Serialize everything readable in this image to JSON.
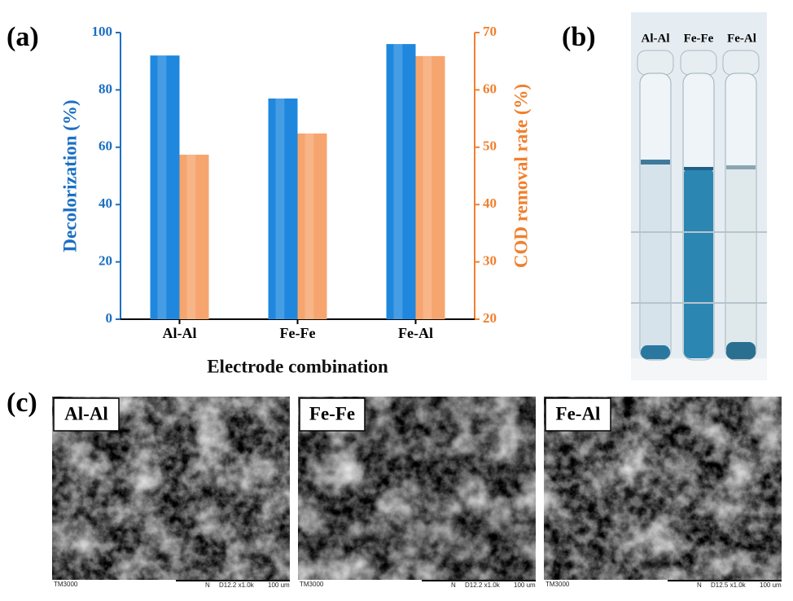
{
  "chart_data": {
    "type": "bar",
    "panel_label": "(a)",
    "xlabel": "Electrode combination",
    "ylabel": "Decolorization (%)",
    "y2label": "COD removal rate (%)",
    "categories": [
      "Al-Al",
      "Fe-Fe",
      "Fe-Al"
    ],
    "series": [
      {
        "color": "#1f88de",
        "values": [
          92,
          77,
          96
        ]
      },
      {
        "color": "#f6a56e",
        "values": [
          48.7,
          52.4,
          65.9
        ],
        "axis": "y2"
      }
    ],
    "ylim": [
      0,
      100
    ],
    "yticks": [
      0,
      20,
      40,
      60,
      80,
      100
    ],
    "ycolor": "#1b6fc2",
    "y2lim": [
      20,
      70
    ],
    "y2ticks": [
      20,
      30,
      40,
      50,
      60,
      70
    ],
    "y2color": "#f0802e"
  },
  "photo": {
    "panel_label": "(b)",
    "tubes": [
      "Al-Al",
      "Fe-Fe",
      "Fe-Al"
    ]
  },
  "sem": {
    "panel_label": "(c)",
    "images": [
      {
        "label": "Al-Al",
        "footer": [
          "TM3000",
          "N",
          "D12.2 x1.0k",
          "100 um"
        ]
      },
      {
        "label": "Fe-Fe",
        "footer": [
          "TM3000",
          "N",
          "D12.2 x1.0k",
          "100 um"
        ]
      },
      {
        "label": "Fe-Al",
        "footer": [
          "TM3000",
          "N",
          "D12.5 x1.0k",
          "100 um"
        ]
      }
    ]
  }
}
